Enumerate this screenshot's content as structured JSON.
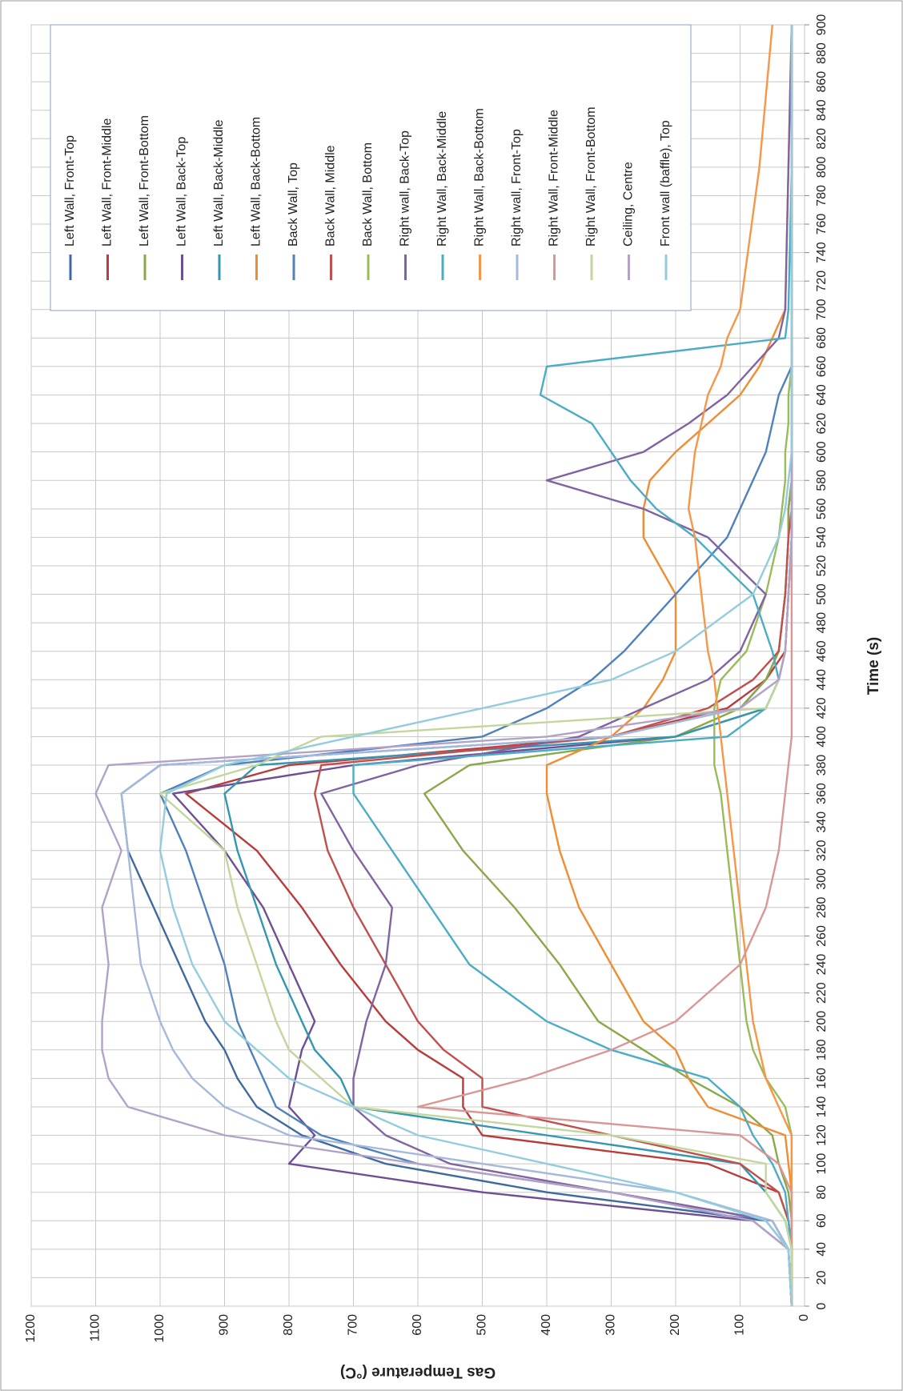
{
  "chart_data": {
    "type": "line",
    "x_label": "Time (s)",
    "y_label": "Gas Temperature (°C)",
    "x": [
      0,
      40,
      60,
      80,
      100,
      120,
      140,
      160,
      180,
      200,
      240,
      280,
      320,
      360,
      380,
      400,
      420,
      440,
      460,
      500,
      540,
      560,
      580,
      600,
      620,
      640,
      660,
      680,
      700,
      800,
      900
    ],
    "xlim": [
      0,
      900
    ],
    "ylim": [
      0,
      1200
    ],
    "xticks": [
      0,
      20,
      40,
      60,
      80,
      100,
      120,
      140,
      160,
      180,
      200,
      220,
      240,
      260,
      280,
      300,
      320,
      340,
      360,
      380,
      400,
      420,
      440,
      460,
      480,
      500,
      520,
      540,
      560,
      580,
      600,
      620,
      640,
      660,
      680,
      700,
      720,
      740,
      760,
      780,
      800,
      820,
      840,
      860,
      880,
      900
    ],
    "yticks": [
      0,
      100,
      200,
      300,
      400,
      500,
      600,
      700,
      800,
      900,
      1000,
      1100,
      1200
    ],
    "grid": true,
    "legend": "top-right",
    "series": [
      {
        "name": "Left Wall, Front-Top",
        "color": "#3f6aa0",
        "values": [
          20,
          25,
          60,
          400,
          650,
          780,
          850,
          880,
          900,
          930,
          970,
          1010,
          1050,
          1060,
          1000,
          300,
          100,
          60,
          40,
          30,
          25,
          25,
          20,
          20,
          20,
          20,
          20,
          20,
          20,
          20,
          20
        ]
      },
      {
        "name": "Left Wall, Front-Middle",
        "color": "#b83c3a",
        "values": [
          20,
          20,
          25,
          40,
          150,
          500,
          530,
          530,
          600,
          650,
          720,
          780,
          850,
          960,
          800,
          300,
          120,
          60,
          30,
          25,
          20,
          20,
          20,
          20,
          20,
          20,
          20,
          20,
          20,
          20,
          20
        ]
      },
      {
        "name": "Left Wall, Front-Bottom",
        "color": "#8aa84a",
        "values": [
          20,
          20,
          20,
          25,
          40,
          50,
          100,
          180,
          250,
          320,
          380,
          450,
          530,
          590,
          520,
          200,
          100,
          60,
          40,
          30,
          25,
          25,
          20,
          20,
          20,
          20,
          20,
          20,
          20,
          20,
          20
        ]
      },
      {
        "name": "Left Wall, Back-Top",
        "color": "#6e4f96",
        "values": [
          20,
          25,
          80,
          500,
          800,
          760,
          800,
          790,
          780,
          760,
          800,
          840,
          900,
          980,
          700,
          200,
          60,
          40,
          30,
          25,
          20,
          20,
          20,
          20,
          20,
          20,
          20,
          20,
          20,
          20,
          20
        ]
      },
      {
        "name": "Left Wall, Back-Middle",
        "color": "#3496b0",
        "values": [
          20,
          20,
          30,
          60,
          100,
          400,
          700,
          720,
          760,
          780,
          820,
          850,
          880,
          900,
          850,
          200,
          60,
          40,
          30,
          25,
          20,
          20,
          20,
          20,
          20,
          20,
          20,
          20,
          20,
          20,
          20
        ]
      },
      {
        "name": "Left Wall, Back-Bottom",
        "color": "#f08c32",
        "values": [
          20,
          20,
          20,
          20,
          25,
          30,
          150,
          180,
          200,
          250,
          300,
          350,
          380,
          400,
          400,
          300,
          250,
          220,
          200,
          200,
          250,
          250,
          240,
          200,
          150,
          100,
          70,
          50,
          30,
          25,
          20
        ]
      },
      {
        "name": "Back Wall, Top",
        "color": "#4f81bd",
        "values": [
          20,
          25,
          50,
          300,
          600,
          750,
          820,
          840,
          860,
          880,
          900,
          930,
          960,
          1000,
          900,
          500,
          400,
          330,
          280,
          200,
          120,
          100,
          80,
          60,
          50,
          40,
          20,
          20,
          20,
          20,
          20
        ]
      },
      {
        "name": "Back Wall, Middle",
        "color": "#c0504d",
        "values": [
          20,
          20,
          25,
          40,
          100,
          300,
          500,
          500,
          560,
          600,
          650,
          700,
          740,
          760,
          750,
          300,
          150,
          80,
          40,
          30,
          25,
          20,
          20,
          20,
          20,
          20,
          20,
          20,
          20,
          20,
          20
        ]
      },
      {
        "name": "Back Wall, Bottom",
        "color": "#9bbb59",
        "values": [
          20,
          20,
          20,
          20,
          20,
          20,
          30,
          60,
          80,
          90,
          100,
          110,
          120,
          130,
          140,
          140,
          140,
          130,
          90,
          60,
          40,
          35,
          30,
          30,
          25,
          25,
          20,
          20,
          20,
          20,
          20
        ]
      },
      {
        "name": "Right wall, Back-Top",
        "color": "#8064a2",
        "values": [
          20,
          25,
          50,
          300,
          550,
          650,
          700,
          700,
          690,
          680,
          650,
          640,
          700,
          750,
          600,
          350,
          250,
          150,
          100,
          60,
          150,
          250,
          400,
          250,
          180,
          120,
          80,
          40,
          30,
          25,
          20
        ]
      },
      {
        "name": "Right Wall, Back-Middle",
        "color": "#4bacc6",
        "values": [
          20,
          20,
          25,
          30,
          50,
          80,
          100,
          150,
          300,
          400,
          520,
          580,
          640,
          700,
          700,
          120,
          60,
          40,
          50,
          80,
          170,
          230,
          270,
          300,
          330,
          410,
          400,
          30,
          25,
          20,
          20
        ]
      },
      {
        "name": "Right Wall, Back-Bottom",
        "color": "#f79646",
        "values": [
          20,
          20,
          20,
          20,
          20,
          20,
          40,
          60,
          70,
          80,
          90,
          100,
          110,
          120,
          125,
          130,
          135,
          140,
          150,
          160,
          170,
          180,
          175,
          170,
          160,
          150,
          130,
          120,
          100,
          70,
          50
        ]
      },
      {
        "name": "Right wall, Front-Top",
        "color": "#a5b9dc",
        "values": [
          20,
          25,
          50,
          200,
          500,
          800,
          900,
          950,
          980,
          1000,
          1030,
          1040,
          1050,
          1060,
          1000,
          300,
          100,
          40,
          30,
          25,
          20,
          20,
          20,
          20,
          20,
          20,
          20,
          20,
          20,
          20,
          20
        ]
      },
      {
        "name": "Right Wall, Front-Middle",
        "color": "#d99694",
        "values": [
          20,
          20,
          20,
          20,
          40,
          100,
          600,
          430,
          300,
          200,
          100,
          60,
          40,
          30,
          25,
          20,
          20,
          20,
          20,
          20,
          20,
          20,
          20,
          20,
          20,
          20,
          20,
          20,
          20,
          20,
          20
        ]
      },
      {
        "name": "Right Wall, Front-Bottom",
        "color": "#c3d69b",
        "values": [
          20,
          20,
          30,
          60,
          60,
          300,
          700,
          750,
          800,
          820,
          850,
          880,
          900,
          1000,
          850,
          750,
          60,
          40,
          30,
          25,
          20,
          20,
          20,
          20,
          20,
          20,
          20,
          20,
          20,
          20,
          20
        ]
      },
      {
        "name": "Ceiling, Centre",
        "color": "#b3a2c7",
        "values": [
          20,
          25,
          80,
          300,
          600,
          900,
          1050,
          1080,
          1090,
          1090,
          1080,
          1090,
          1060,
          1100,
          1080,
          400,
          100,
          40,
          30,
          25,
          20,
          20,
          20,
          20,
          20,
          20,
          20,
          20,
          20,
          20,
          20
        ]
      },
      {
        "name": "Front wall (baffle), Top",
        "color": "#93cddd",
        "values": [
          20,
          25,
          60,
          200,
          400,
          600,
          700,
          800,
          850,
          900,
          950,
          980,
          1000,
          990,
          900,
          700,
          500,
          300,
          200,
          80,
          40,
          30,
          25,
          20,
          20,
          20,
          20,
          20,
          20,
          20,
          20
        ]
      }
    ]
  }
}
